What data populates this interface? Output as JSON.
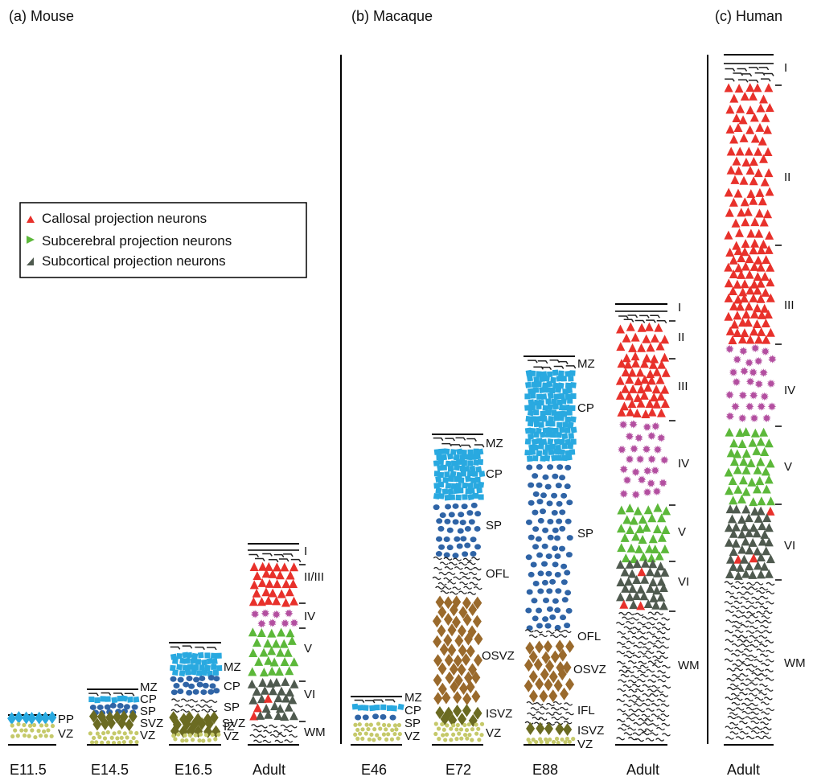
{
  "colors": {
    "callosal": "#e8312b",
    "subcerebral": "#5cb83a",
    "subcortical": "#4f5a4f",
    "cp_square": "#29a9e0",
    "sp_circle": "#2f64a6",
    "svz_diamond": "#6b6b22",
    "osvz_diamond": "#9a6a2c",
    "vz_dot": "#c5c96a",
    "iv_star": "#b34fa0",
    "fiber": "#222222"
  },
  "panels": {
    "mouse": {
      "title": "(a) Mouse",
      "columns": [
        {
          "label": "E11.5",
          "layers": [
            "PP",
            "VZ"
          ]
        },
        {
          "label": "E14.5",
          "layers": [
            "MZ",
            "CP",
            "SP",
            "SVZ",
            "VZ"
          ]
        },
        {
          "label": "E16.5",
          "layers": [
            "MZ",
            "CP",
            "SP",
            "IZ",
            "SVZ",
            "VZ"
          ]
        },
        {
          "label": "Adult",
          "layers": [
            "I",
            "II/III",
            "IV",
            "V",
            "VI",
            "WM"
          ]
        }
      ]
    },
    "macaque": {
      "title": "(b) Macaque",
      "columns": [
        {
          "label": "E46",
          "layers": [
            "MZ",
            "CP",
            "SP",
            "VZ"
          ]
        },
        {
          "label": "E72",
          "layers": [
            "MZ",
            "CP",
            "SP",
            "OFL",
            "OSVZ",
            "ISVZ",
            "VZ"
          ]
        },
        {
          "label": "E88",
          "layers": [
            "MZ",
            "CP",
            "SP",
            "OFL",
            "OSVZ",
            "IFL",
            "ISVZ",
            "VZ"
          ]
        },
        {
          "label": "Adult",
          "layers": [
            "I",
            "II",
            "III",
            "IV",
            "V",
            "VI",
            "WM"
          ]
        }
      ]
    },
    "human": {
      "title": "(c) Human",
      "columns": [
        {
          "label": "Adult",
          "layers": [
            "I",
            "II",
            "III",
            "IV",
            "V",
            "VI",
            "WM"
          ]
        }
      ]
    }
  },
  "legend": {
    "items": [
      {
        "label": "Callosal projection neurons",
        "color_key": "callosal",
        "icon": "red-triangle-icon"
      },
      {
        "label": "Subcerebral projection neurons",
        "color_key": "subcerebral",
        "icon": "green-triangle-icon"
      },
      {
        "label": "Subcortical projection neurons",
        "color_key": "subcortical",
        "icon": "gray-triangle-icon"
      }
    ]
  }
}
